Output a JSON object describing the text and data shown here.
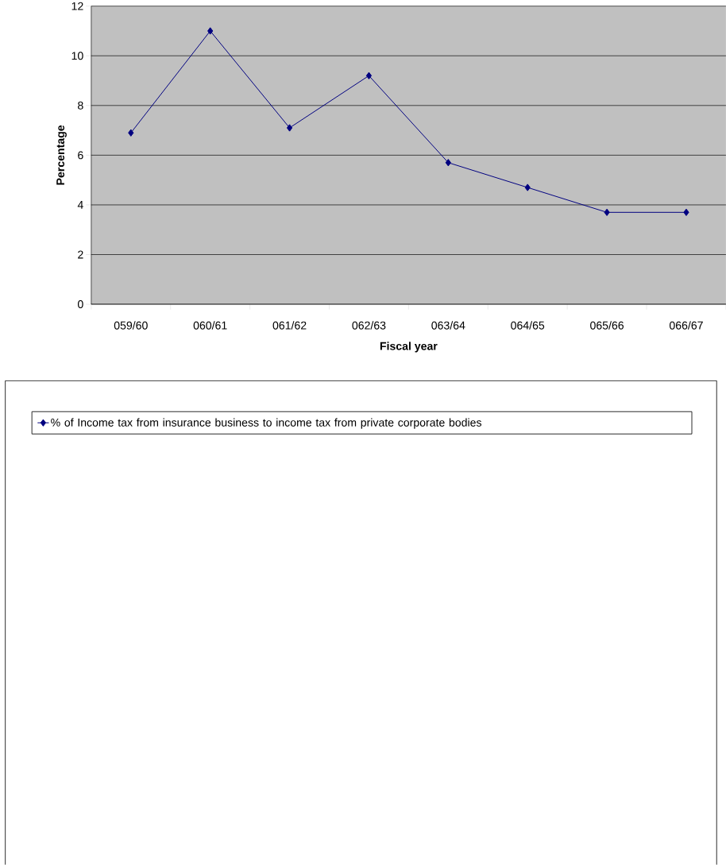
{
  "chart_data": {
    "type": "line",
    "categories": [
      "059/60",
      "060/61",
      "061/62",
      "062/63",
      "063/64",
      "064/65",
      "065/66",
      "066/67"
    ],
    "series": [
      {
        "name": "% of Income tax from insurance business to income tax from private corporate bodies",
        "color": "#000080",
        "values": [
          6.9,
          11.0,
          7.1,
          9.2,
          5.7,
          4.7,
          3.7,
          3.7
        ]
      }
    ],
    "xlabel": "Fiscal year",
    "ylabel": "Percentage",
    "ylim": [
      0,
      12
    ],
    "yticks": [
      0,
      2,
      4,
      6,
      8,
      10,
      12
    ],
    "grid": "y",
    "legend": "bottom",
    "marker": "diamond"
  }
}
